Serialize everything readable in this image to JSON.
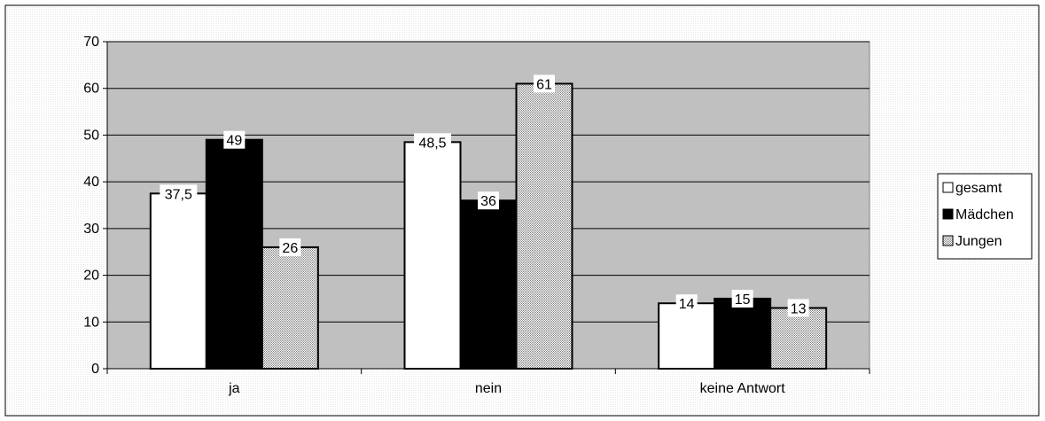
{
  "chart_data": {
    "type": "bar",
    "categories": [
      "ja",
      "nein",
      "keine Antwort"
    ],
    "series": [
      {
        "name": "gesamt",
        "values": [
          37.5,
          48.5,
          14
        ],
        "labels": [
          "37,5",
          "48,5",
          "14"
        ],
        "fill": "white"
      },
      {
        "name": "Mädchen",
        "values": [
          49,
          36,
          15
        ],
        "labels": [
          "49",
          "36",
          "15"
        ],
        "fill": "black"
      },
      {
        "name": "Jungen",
        "values": [
          26,
          61,
          13
        ],
        "labels": [
          "26",
          "61",
          "13"
        ],
        "fill": "dotted-gray"
      }
    ],
    "title": "",
    "xlabel": "",
    "ylabel": "",
    "ylim": [
      0,
      70
    ],
    "yticks": [
      "0",
      "10",
      "20",
      "30",
      "40",
      "50",
      "60",
      "70"
    ],
    "grid": true,
    "legend_position": "right",
    "colors": {
      "plot_area": "#c0c0c0",
      "outer_background": "#ffffff",
      "bar_outline": "#000000"
    }
  }
}
